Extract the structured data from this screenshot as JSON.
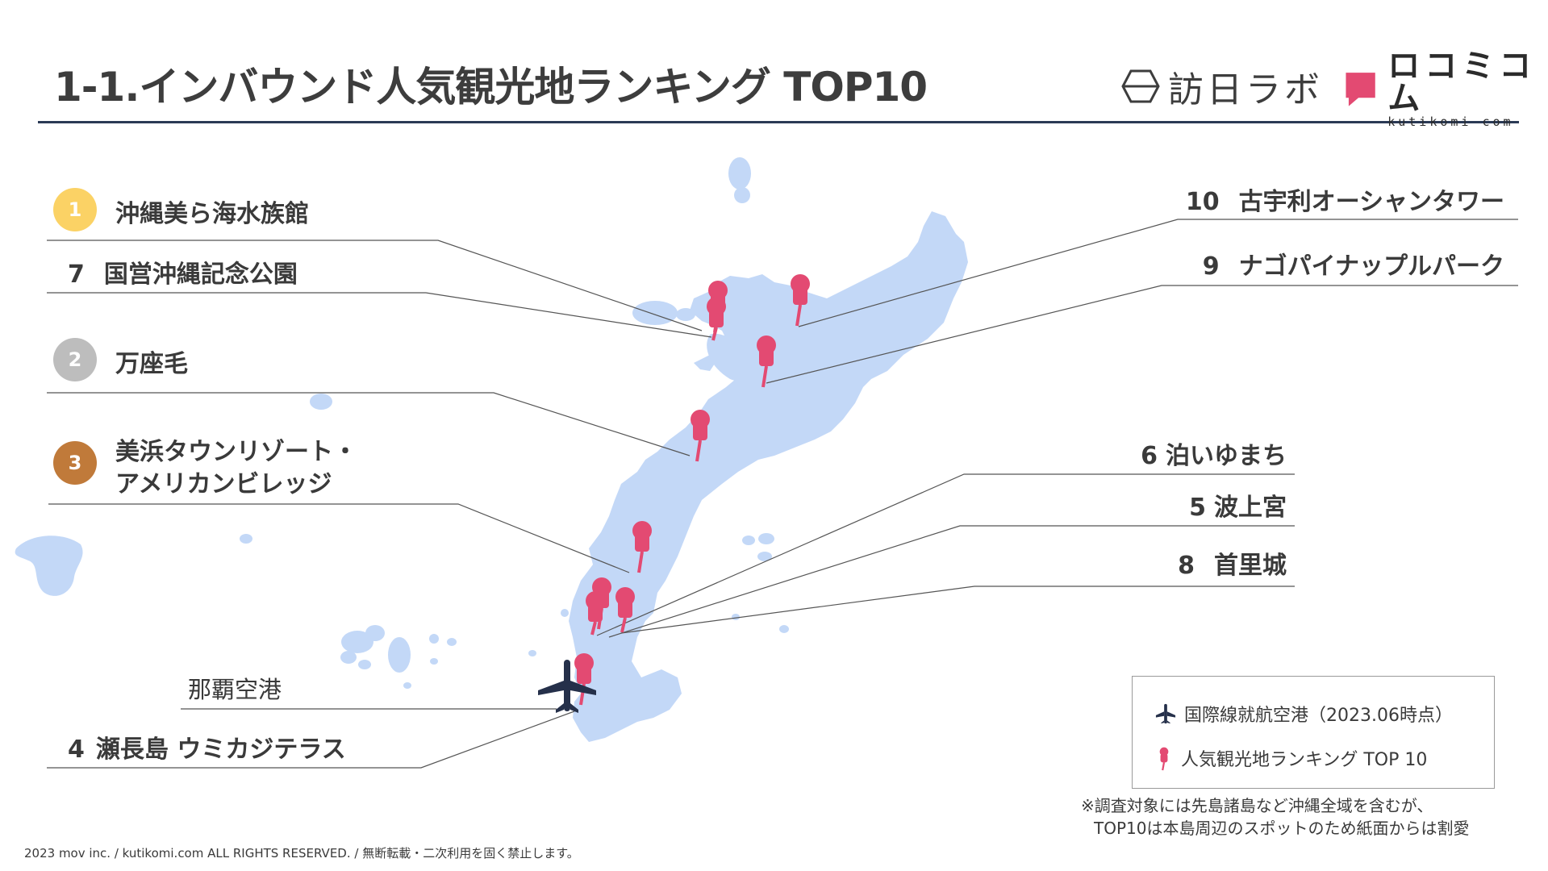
{
  "title": "1-1.インバウンド人気観光地ランキング TOP10",
  "logos": {
    "hojin": "訪日ラボ",
    "kutikomi_jp": "ロコミコム",
    "kutikomi_en": "kutikomi com"
  },
  "colors": {
    "land": "#c3d8f7",
    "pin": "#e34a72",
    "rule": "#2b3a55",
    "gold": "#fbd265",
    "silver": "#bdbdbd",
    "bronze": "#c07a3a",
    "airplane": "#25304a"
  },
  "rankings": {
    "r1": {
      "rank": "1",
      "name": "沖縄美ら海水族館"
    },
    "r7": {
      "rank": "7",
      "name": "国営沖縄記念公園"
    },
    "r2": {
      "rank": "2",
      "name": "万座毛"
    },
    "r3": {
      "rank": "3",
      "name_line1": "美浜タウンリゾート・",
      "name_line2": "アメリカンビレッジ"
    },
    "r4": {
      "rank": "4",
      "name": "瀬長島 ウミカジテラス"
    },
    "r10": {
      "rank": "10",
      "name": "古宇利オーシャンタワー"
    },
    "r9": {
      "rank": "9",
      "name": "ナゴパイナップルパーク"
    },
    "r6": {
      "rank": "6",
      "name": "泊いゆまち"
    },
    "r5": {
      "rank": "5",
      "name": "波上宮"
    },
    "r8": {
      "rank": "8",
      "name": "首里城"
    }
  },
  "airport": {
    "name": "那覇空港",
    "icon": "airplane-icon"
  },
  "legend": {
    "airport": "国際線就航空港（2023.06時点）",
    "pins": "人気観光地ランキング TOP 10"
  },
  "note": {
    "line1": "※調査対象には先島諸島など沖縄全域を含むが、",
    "line2": "TOP10は本島周辺のスポットのため紙面からは割愛"
  },
  "footer": "2023 mov inc. / kutikomi.com ALL RIGHTS RESERVED. / 無断転載・二次利用を固く禁止します。"
}
